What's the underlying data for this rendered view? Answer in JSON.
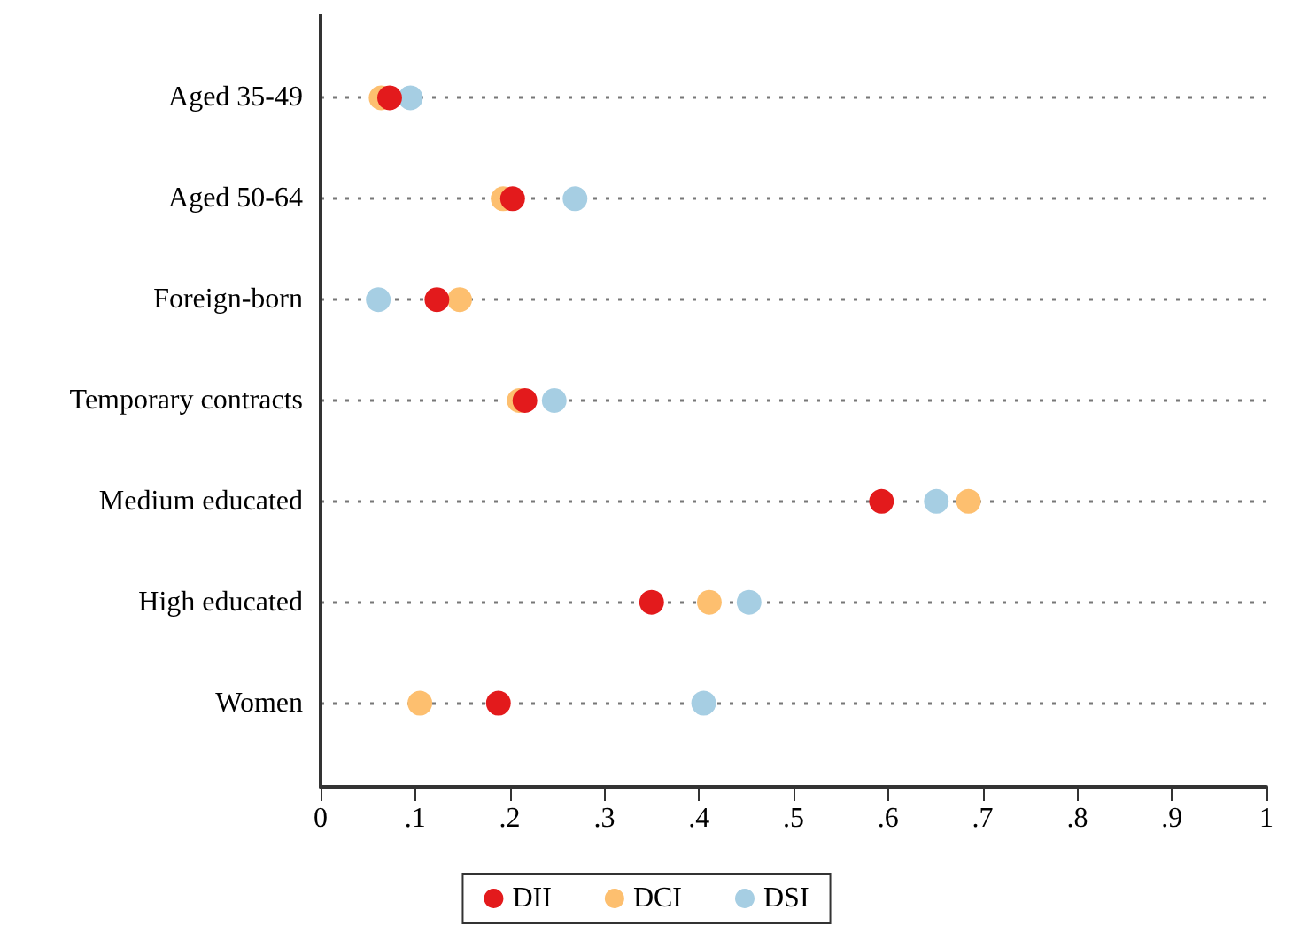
{
  "chart_data": {
    "type": "scatter",
    "categories": [
      "Aged 35-49",
      "Aged 50-64",
      "Foreign-born",
      "Temporary contracts",
      "Medium educated",
      "High educated",
      "Women"
    ],
    "orientation": "horizontal",
    "series": [
      {
        "name": "DII",
        "color": "#e31a1c",
        "values": [
          0.073,
          0.203,
          0.123,
          0.216,
          0.593,
          0.35,
          0.188
        ]
      },
      {
        "name": "DCI",
        "color": "#fdbf6f",
        "values": [
          0.064,
          0.193,
          0.147,
          0.21,
          0.685,
          0.411,
          0.105
        ]
      },
      {
        "name": "DSI",
        "color": "#a6cee3",
        "values": [
          0.095,
          0.269,
          0.061,
          0.247,
          0.651,
          0.453,
          0.405
        ]
      }
    ],
    "xlim": [
      0,
      1
    ],
    "xticks": [
      0,
      {
        "value": 0.1,
        "label": ".1"
      },
      {
        "value": 0.2,
        "label": ".2"
      },
      {
        "value": 0.3,
        "label": ".3"
      },
      {
        "value": 0.4,
        "label": ".4"
      },
      {
        "value": 0.5,
        "label": ".5"
      },
      {
        "value": 0.6,
        "label": ".6"
      },
      {
        "value": 0.7,
        "label": ".7"
      },
      {
        "value": 0.8,
        "label": ".8"
      },
      {
        "value": 0.9,
        "label": ".9"
      },
      1
    ],
    "grid": "y",
    "legend": "bottom",
    "marker": "circle"
  }
}
